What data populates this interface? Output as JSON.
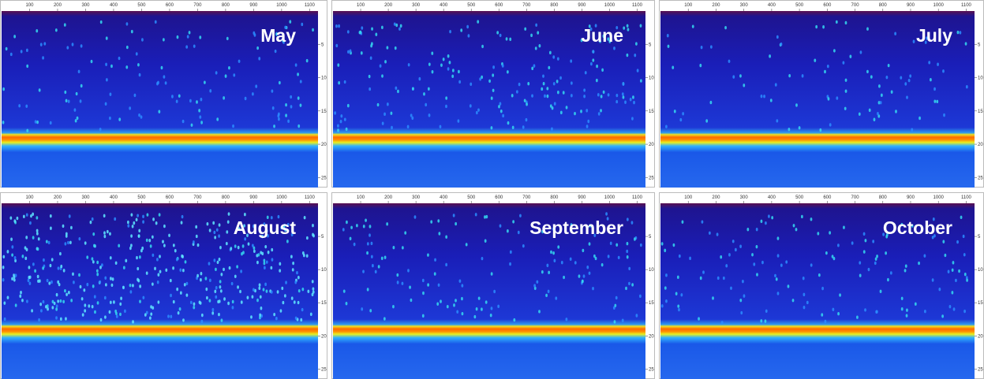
{
  "panels": [
    {
      "label": "May"
    },
    {
      "label": "June"
    },
    {
      "label": "July"
    },
    {
      "label": "August"
    },
    {
      "label": "September"
    },
    {
      "label": "October"
    }
  ],
  "x_ticks": [
    100,
    200,
    300,
    400,
    500,
    600,
    700,
    800,
    900,
    1000,
    1100
  ],
  "y_ticks": [
    5,
    10,
    15,
    20,
    25
  ]
}
